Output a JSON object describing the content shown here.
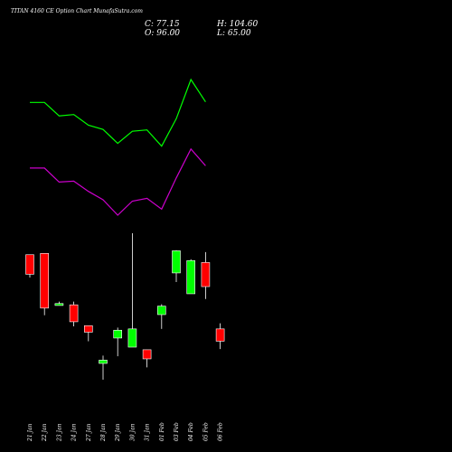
{
  "header": {
    "title": "TITAN 4160  CE Option  Chart MunafaSutra.com",
    "close": "C: 77.15",
    "open": "O: 96.00",
    "high": "H: 104.60",
    "low": "L: 65.00"
  },
  "colors": {
    "background": "#000000",
    "bullish": "#00ff00",
    "bearish": "#ff0000",
    "upper_band": "#00ff00",
    "lower_band": "#cc00cc",
    "text": "#ffffff"
  },
  "chart_data": {
    "type": "candlestick",
    "categories": [
      "21 Jan",
      "22 Jan",
      "23 Jan",
      "24 Jan",
      "27 Jan",
      "28 Jan",
      "29 Jan",
      "30 Jan",
      "31 Jan",
      "01 Feb",
      "03 Feb",
      "04 Feb",
      "05 Feb",
      "06 Feb"
    ],
    "candles": [
      {
        "open": 210,
        "high": 210,
        "low": 175,
        "close": 180
      },
      {
        "open": 212,
        "high": 212,
        "low": 117,
        "close": 128
      },
      {
        "open": 132,
        "high": 138,
        "low": 132,
        "close": 135
      },
      {
        "open": 133,
        "high": 138,
        "low": 100,
        "close": 107
      },
      {
        "open": 101,
        "high": 101,
        "low": 77,
        "close": 91
      },
      {
        "open": 43,
        "high": 55,
        "low": 18,
        "close": 48
      },
      {
        "open": 82,
        "high": 98,
        "low": 54,
        "close": 94
      },
      {
        "open": 68,
        "high": 243,
        "low": 68,
        "close": 96
      },
      {
        "open": 64,
        "high": 64,
        "low": 37,
        "close": 50
      },
      {
        "open": 118,
        "high": 134,
        "low": 96,
        "close": 131
      },
      {
        "open": 182,
        "high": 217,
        "low": 168,
        "close": 216
      },
      {
        "open": 150,
        "high": 203,
        "low": 150,
        "close": 201
      },
      {
        "open": 198,
        "high": 214,
        "low": 142,
        "close": 161
      },
      {
        "open": 96,
        "high": 104.6,
        "low": 65,
        "close": 77.15
      }
    ],
    "bands": [
      {
        "name": "upper",
        "values": [
          3440,
          3440,
          3150,
          3180,
          2950,
          2860,
          2560,
          2820,
          2850,
          2500,
          3090,
          3930,
          3450,
          null
        ]
      },
      {
        "name": "lower",
        "values": [
          2030,
          2030,
          1730,
          1750,
          1530,
          1350,
          1020,
          1320,
          1380,
          1150,
          1820,
          2440,
          2080,
          null
        ]
      }
    ]
  }
}
